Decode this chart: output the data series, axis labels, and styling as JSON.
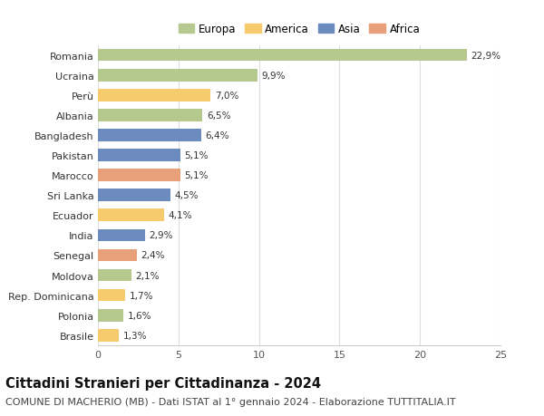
{
  "countries": [
    "Romania",
    "Ucraina",
    "Perù",
    "Albania",
    "Bangladesh",
    "Pakistan",
    "Marocco",
    "Sri Lanka",
    "Ecuador",
    "India",
    "Senegal",
    "Moldova",
    "Rep. Dominicana",
    "Polonia",
    "Brasile"
  ],
  "values": [
    22.9,
    9.9,
    7.0,
    6.5,
    6.4,
    5.1,
    5.1,
    4.5,
    4.1,
    2.9,
    2.4,
    2.1,
    1.7,
    1.6,
    1.3
  ],
  "labels": [
    "22,9%",
    "9,9%",
    "7,0%",
    "6,5%",
    "6,4%",
    "5,1%",
    "5,1%",
    "4,5%",
    "4,1%",
    "2,9%",
    "2,4%",
    "2,1%",
    "1,7%",
    "1,6%",
    "1,3%"
  ],
  "continents": [
    "Europa",
    "Europa",
    "America",
    "Europa",
    "Asia",
    "Asia",
    "Africa",
    "Asia",
    "America",
    "Asia",
    "Africa",
    "Europa",
    "America",
    "Europa",
    "America"
  ],
  "continent_colors": {
    "Europa": "#b5c98e",
    "America": "#f5cb6e",
    "Asia": "#6b8bbf",
    "Africa": "#e8a07a"
  },
  "legend_order": [
    "Europa",
    "America",
    "Asia",
    "Africa"
  ],
  "xlim": [
    0,
    25
  ],
  "xticks": [
    0,
    5,
    10,
    15,
    20,
    25
  ],
  "title": "Cittadini Stranieri per Cittadinanza - 2024",
  "subtitle": "COMUNE DI MACHERIO (MB) - Dati ISTAT al 1° gennaio 2024 - Elaborazione TUTTITALIA.IT",
  "background_color": "#ffffff",
  "bar_height": 0.62,
  "title_fontsize": 10.5,
  "subtitle_fontsize": 8,
  "label_fontsize": 7.5,
  "tick_fontsize": 8,
  "legend_fontsize": 8.5
}
